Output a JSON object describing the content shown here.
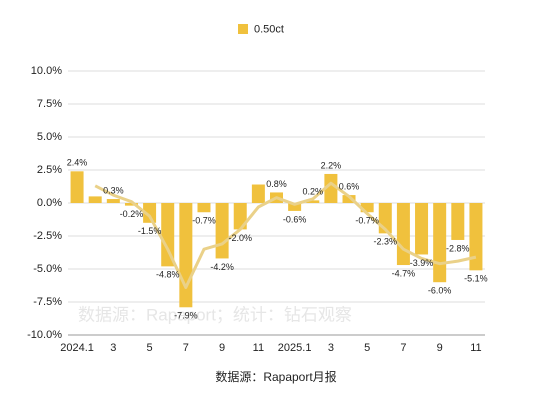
{
  "chart_data": {
    "type": "bar",
    "legend": "0.50ct",
    "color": "#f0c13d",
    "categories": [
      "2024.1",
      null,
      "3",
      null,
      "5",
      null,
      "7",
      null,
      "9",
      null,
      "11",
      null,
      "2025.1",
      null,
      "3",
      null,
      "5",
      null,
      "7",
      null,
      "9",
      null,
      "11"
    ],
    "values": [
      2.4,
      0.5,
      0.3,
      -0.2,
      -1.5,
      -4.8,
      -7.9,
      -0.7,
      -4.2,
      -2.0,
      1.4,
      0.8,
      -0.6,
      0.2,
      2.2,
      0.6,
      -0.7,
      -2.3,
      -4.7,
      -3.9,
      -6.0,
      -2.8,
      -5.1
    ],
    "value_labels": [
      "2.4%",
      null,
      "0.3%",
      "-0.2%",
      "-1.5%",
      "-4.8%",
      "-7.9%",
      "-0.7%",
      "-4.2%",
      "-2.0%",
      null,
      "0.8%",
      "-0.6%",
      "0.2%",
      "2.2%",
      "0.6%",
      "-0.7%",
      "-2.3%",
      "-4.7%",
      "-3.9%",
      "-6.0%",
      "-2.8%",
      "-5.1%"
    ],
    "trend": {
      "color": "#ead189",
      "values": [
        null,
        1.3,
        0.6,
        0.1,
        -1.0,
        -3.5,
        -6.4,
        -3.5,
        -3.1,
        -2.0,
        -0.3,
        0.4,
        -0.1,
        0.3,
        1.5,
        0.5,
        -0.8,
        -2.0,
        -3.5,
        -4.2,
        -4.6,
        -4.4,
        -4.1
      ]
    },
    "ylim": [
      -10,
      10
    ],
    "yticks": [
      {
        "value": -10,
        "label": "-10.0%"
      },
      {
        "value": -7.5,
        "label": "-7.5%"
      },
      {
        "value": -5,
        "label": "-5.0%"
      },
      {
        "value": -2.5,
        "label": "-2.5%"
      },
      {
        "value": 0,
        "label": "0.0%"
      },
      {
        "value": 2.5,
        "label": "2.5%"
      },
      {
        "value": 5,
        "label": "5.0%"
      },
      {
        "value": 7.5,
        "label": "7.5%"
      },
      {
        "value": 10,
        "label": "10.0%"
      }
    ],
    "grid": true,
    "watermark": "数据源：Rapaport；统计：钻石观察",
    "source": "数据源：Rapaport月报"
  }
}
